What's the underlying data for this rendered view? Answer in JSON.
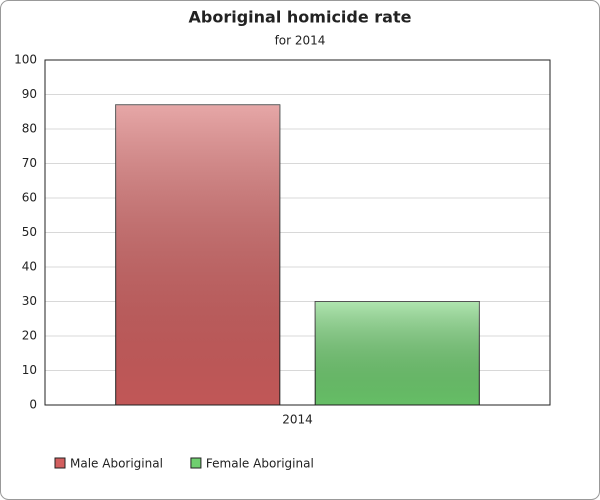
{
  "chart_data": {
    "type": "bar",
    "title": "Aboriginal homicide rate",
    "subtitle": "for 2014",
    "categories": [
      "2014"
    ],
    "series": [
      {
        "name": "Male Aboriginal",
        "color": "#d25f5f",
        "values": [
          87
        ]
      },
      {
        "name": "Female Aboriginal",
        "color": "#6fcf6f",
        "values": [
          30
        ]
      }
    ],
    "ylim": [
      0,
      100
    ],
    "yticks": [
      0,
      10,
      20,
      30,
      40,
      50,
      60,
      70,
      80,
      90,
      100
    ],
    "grid": true,
    "legend": "bottom-left"
  }
}
